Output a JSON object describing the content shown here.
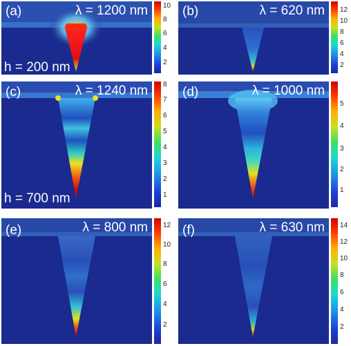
{
  "panels": [
    {
      "letter": "(a)",
      "lambda": "λ = 1200 nm",
      "height_label": "h = 200 nm",
      "ticks": [
        "10",
        "8",
        "6",
        "4",
        "2"
      ]
    },
    {
      "letter": "(b)",
      "lambda": "λ = 620 nm",
      "height_label": "",
      "ticks": [
        "12",
        "10",
        "8",
        "6",
        "4",
        "2"
      ]
    },
    {
      "letter": "(c)",
      "lambda": "λ = 1240 nm",
      "height_label": "h = 700 nm",
      "ticks": [
        "8",
        "7",
        "6",
        "5",
        "4",
        "3",
        "2",
        "1"
      ]
    },
    {
      "letter": "(d)",
      "lambda": "λ = 1000 nm",
      "height_label": "",
      "ticks": [
        "5",
        "4",
        "3",
        "2",
        "1"
      ]
    },
    {
      "letter": "(e)",
      "lambda": "λ = 800 nm",
      "height_label": "",
      "ticks": [
        "12",
        "10",
        "8",
        "6",
        "4",
        "2"
      ]
    },
    {
      "letter": "(f)",
      "lambda": "λ = 630 nm",
      "height_label": "",
      "ticks": [
        "14",
        "12",
        "10",
        "8",
        "6",
        "4",
        "2"
      ]
    }
  ],
  "colors": {
    "background": "#1a2a8e",
    "hot": "#e01010",
    "cyan": "#40c0f0"
  }
}
